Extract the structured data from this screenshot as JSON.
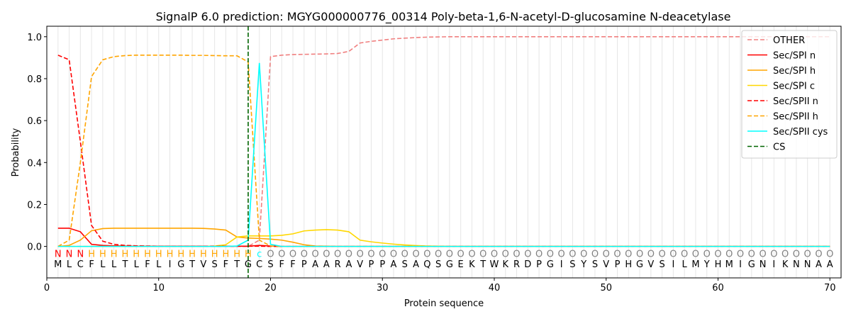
{
  "chart_data": {
    "type": "line",
    "title": "SignalP 6.0 prediction: MGYG000000776_00314 Poly-beta-1,6-N-acetyl-D-glucosamine N-deacetylase",
    "xlabel": "Protein sequence",
    "ylabel": "Probability",
    "xlim": [
      0,
      71
    ],
    "ylim": [
      -0.15,
      1.05
    ],
    "xticks": [
      0,
      10,
      20,
      30,
      40,
      50,
      60,
      70
    ],
    "yticks": [
      0.0,
      0.2,
      0.4,
      0.6,
      0.8,
      1.0
    ],
    "grid": "vertical lines at each residue",
    "legend_position": "top-right",
    "sequence": [
      "M",
      "L",
      "C",
      "F",
      "L",
      "L",
      "T",
      "L",
      "F",
      "L",
      "I",
      "G",
      "T",
      "V",
      "S",
      "F",
      "T",
      "G",
      "C",
      "S",
      "F",
      "F",
      "P",
      "A",
      "A",
      "R",
      "A",
      "V",
      "P",
      "P",
      "A",
      "S",
      "A",
      "Q",
      "S",
      "G",
      "E",
      "K",
      "T",
      "W",
      "K",
      "R",
      "D",
      "P",
      "G",
      "I",
      "S",
      "Y",
      "S",
      "V",
      "P",
      "H",
      "G",
      "V",
      "S",
      "I",
      "L",
      "M",
      "Y",
      "H",
      "M",
      "I",
      "G",
      "N",
      "I",
      "K",
      "N",
      "N",
      "A",
      "A"
    ],
    "annotations": [
      "N",
      "N",
      "N",
      "H",
      "H",
      "H",
      "H",
      "H",
      "H",
      "H",
      "H",
      "H",
      "H",
      "H",
      "H",
      "H",
      "H",
      "H",
      "c",
      "O",
      "O",
      "O",
      "O",
      "O",
      "O",
      "O",
      "O",
      "O",
      "O",
      "O",
      "O",
      "O",
      "O",
      "O",
      "O",
      "O",
      "O",
      "O",
      "O",
      "O",
      "O",
      "O",
      "O",
      "O",
      "O",
      "O",
      "O",
      "O",
      "O",
      "O",
      "O",
      "O",
      "O",
      "O",
      "O",
      "O",
      "O",
      "O",
      "O",
      "O",
      "O",
      "O",
      "O",
      "O",
      "O",
      "O",
      "O",
      "O",
      "O",
      "O"
    ],
    "annotation_colors": {
      "N": "#ff0000",
      "H": "#ffa500",
      "c": "#00ffff",
      "O": "#808080"
    },
    "cleavage_site": 18,
    "series": [
      {
        "name": "OTHER",
        "color": "#f08080",
        "dash": "dashed",
        "values": [
          0.0,
          0.0,
          0.0,
          0.0,
          0.0,
          0.0,
          0.0,
          0.0,
          0.0,
          0.0,
          0.0,
          0.0,
          0.0,
          0.0,
          0.0,
          0.0,
          0.0,
          0.0,
          0.03,
          0.905,
          0.912,
          0.915,
          0.916,
          0.917,
          0.918,
          0.92,
          0.93,
          0.97,
          0.978,
          0.984,
          0.99,
          0.993,
          0.996,
          0.998,
          0.999,
          1.0,
          1.0,
          1.0,
          1.0,
          1.0,
          1.0,
          1.0,
          1.0,
          1.0,
          1.0,
          1.0,
          1.0,
          1.0,
          1.0,
          1.0,
          1.0,
          1.0,
          1.0,
          1.0,
          1.0,
          1.0,
          1.0,
          1.0,
          1.0,
          1.0,
          1.0,
          1.0,
          1.0,
          1.0,
          1.0,
          1.0,
          1.0,
          1.0,
          1.0,
          1.0
        ]
      },
      {
        "name": "Sec/SPI n",
        "color": "#ff0000",
        "dash": "solid",
        "values": [
          0.087,
          0.087,
          0.07,
          0.01,
          0.005,
          0.003,
          0.002,
          0.001,
          0.001,
          0.001,
          0.001,
          0.001,
          0.001,
          0.001,
          0.001,
          0.001,
          0.001,
          0.001,
          0.005,
          0.002,
          0.0,
          0.0,
          0.0,
          0.0,
          0.0,
          0.0,
          0.0,
          0.0,
          0.0,
          0.0,
          0.0,
          0.0,
          0.0,
          0.0,
          0.0,
          0.0,
          0.0,
          0.0,
          0.0,
          0.0,
          0.0,
          0.0,
          0.0,
          0.0,
          0.0,
          0.0,
          0.0,
          0.0,
          0.0,
          0.0,
          0.0,
          0.0,
          0.0,
          0.0,
          0.0,
          0.0,
          0.0,
          0.0,
          0.0,
          0.0,
          0.0,
          0.0,
          0.0,
          0.0,
          0.0,
          0.0,
          0.0,
          0.0,
          0.0,
          0.0
        ]
      },
      {
        "name": "Sec/SPI h",
        "color": "#ffa500",
        "dash": "solid",
        "values": [
          0.0,
          0.005,
          0.03,
          0.075,
          0.085,
          0.087,
          0.087,
          0.087,
          0.087,
          0.087,
          0.087,
          0.087,
          0.087,
          0.086,
          0.083,
          0.078,
          0.045,
          0.04,
          0.038,
          0.035,
          0.03,
          0.02,
          0.008,
          0.002,
          0.001,
          0.0,
          0.0,
          0.0,
          0.0,
          0.0,
          0.0,
          0.0,
          0.0,
          0.0,
          0.0,
          0.0,
          0.0,
          0.0,
          0.0,
          0.0,
          0.0,
          0.0,
          0.0,
          0.0,
          0.0,
          0.0,
          0.0,
          0.0,
          0.0,
          0.0,
          0.0,
          0.0,
          0.0,
          0.0,
          0.0,
          0.0,
          0.0,
          0.0,
          0.0,
          0.0,
          0.0,
          0.0,
          0.0,
          0.0,
          0.0,
          0.0,
          0.0,
          0.0,
          0.0,
          0.0
        ]
      },
      {
        "name": "Sec/SPI c",
        "color": "#ffd700",
        "dash": "solid",
        "values": [
          0.0,
          0.0,
          0.0,
          0.0,
          0.0,
          0.0,
          0.0,
          0.0,
          0.0,
          0.0,
          0.0,
          0.0,
          0.0,
          0.0,
          0.002,
          0.008,
          0.045,
          0.05,
          0.05,
          0.05,
          0.053,
          0.06,
          0.074,
          0.078,
          0.08,
          0.078,
          0.07,
          0.03,
          0.022,
          0.016,
          0.011,
          0.007,
          0.004,
          0.002,
          0.001,
          0.0,
          0.0,
          0.0,
          0.0,
          0.0,
          0.0,
          0.0,
          0.0,
          0.0,
          0.0,
          0.0,
          0.0,
          0.0,
          0.0,
          0.0,
          0.0,
          0.0,
          0.0,
          0.0,
          0.0,
          0.0,
          0.0,
          0.0,
          0.0,
          0.0,
          0.0,
          0.0,
          0.0,
          0.0,
          0.0,
          0.0,
          0.0,
          0.0,
          0.0,
          0.0
        ]
      },
      {
        "name": "Sec/SPII n",
        "color": "#ff0000",
        "dash": "dashed",
        "values": [
          0.912,
          0.89,
          0.5,
          0.1,
          0.025,
          0.01,
          0.005,
          0.003,
          0.002,
          0.001,
          0.001,
          0.001,
          0.001,
          0.001,
          0.001,
          0.001,
          0.001,
          0.001,
          0.001,
          0.0,
          0.0,
          0.0,
          0.0,
          0.0,
          0.0,
          0.0,
          0.0,
          0.0,
          0.0,
          0.0,
          0.0,
          0.0,
          0.0,
          0.0,
          0.0,
          0.0,
          0.0,
          0.0,
          0.0,
          0.0,
          0.0,
          0.0,
          0.0,
          0.0,
          0.0,
          0.0,
          0.0,
          0.0,
          0.0,
          0.0,
          0.0,
          0.0,
          0.0,
          0.0,
          0.0,
          0.0,
          0.0,
          0.0,
          0.0,
          0.0,
          0.0,
          0.0,
          0.0,
          0.0,
          0.0,
          0.0,
          0.0,
          0.0,
          0.0,
          0.0
        ]
      },
      {
        "name": "Sec/SPII h",
        "color": "#ffa500",
        "dash": "dashed",
        "values": [
          0.0,
          0.03,
          0.4,
          0.81,
          0.89,
          0.905,
          0.91,
          0.912,
          0.912,
          0.912,
          0.912,
          0.912,
          0.911,
          0.911,
          0.91,
          0.909,
          0.909,
          0.88,
          0.03,
          0.002,
          0.0,
          0.0,
          0.0,
          0.0,
          0.0,
          0.0,
          0.0,
          0.0,
          0.0,
          0.0,
          0.0,
          0.0,
          0.0,
          0.0,
          0.0,
          0.0,
          0.0,
          0.0,
          0.0,
          0.0,
          0.0,
          0.0,
          0.0,
          0.0,
          0.0,
          0.0,
          0.0,
          0.0,
          0.0,
          0.0,
          0.0,
          0.0,
          0.0,
          0.0,
          0.0,
          0.0,
          0.0,
          0.0,
          0.0,
          0.0,
          0.0,
          0.0,
          0.0,
          0.0,
          0.0,
          0.0,
          0.0,
          0.0,
          0.0,
          0.0
        ]
      },
      {
        "name": "Sec/SPII cys",
        "color": "#00ffff",
        "dash": "solid",
        "values": [
          0.0,
          0.0,
          0.0,
          0.0,
          0.0,
          0.0,
          0.0,
          0.0,
          0.0,
          0.0,
          0.0,
          0.0,
          0.0,
          0.0,
          0.0,
          0.0,
          0.002,
          0.03,
          0.875,
          0.01,
          0.0,
          0.0,
          0.0,
          0.0,
          0.0,
          0.0,
          0.0,
          0.0,
          0.0,
          0.0,
          0.0,
          0.0,
          0.0,
          0.0,
          0.0,
          0.0,
          0.0,
          0.0,
          0.0,
          0.0,
          0.0,
          0.0,
          0.0,
          0.0,
          0.0,
          0.0,
          0.0,
          0.0,
          0.0,
          0.0,
          0.0,
          0.0,
          0.0,
          0.0,
          0.0,
          0.0,
          0.0,
          0.0,
          0.0,
          0.0,
          0.0,
          0.0,
          0.0,
          0.0,
          0.0,
          0.0,
          0.0,
          0.0,
          0.0,
          0.0
        ]
      }
    ],
    "cs_legend": {
      "name": "CS",
      "color": "#006400",
      "dash": "dashed"
    }
  }
}
